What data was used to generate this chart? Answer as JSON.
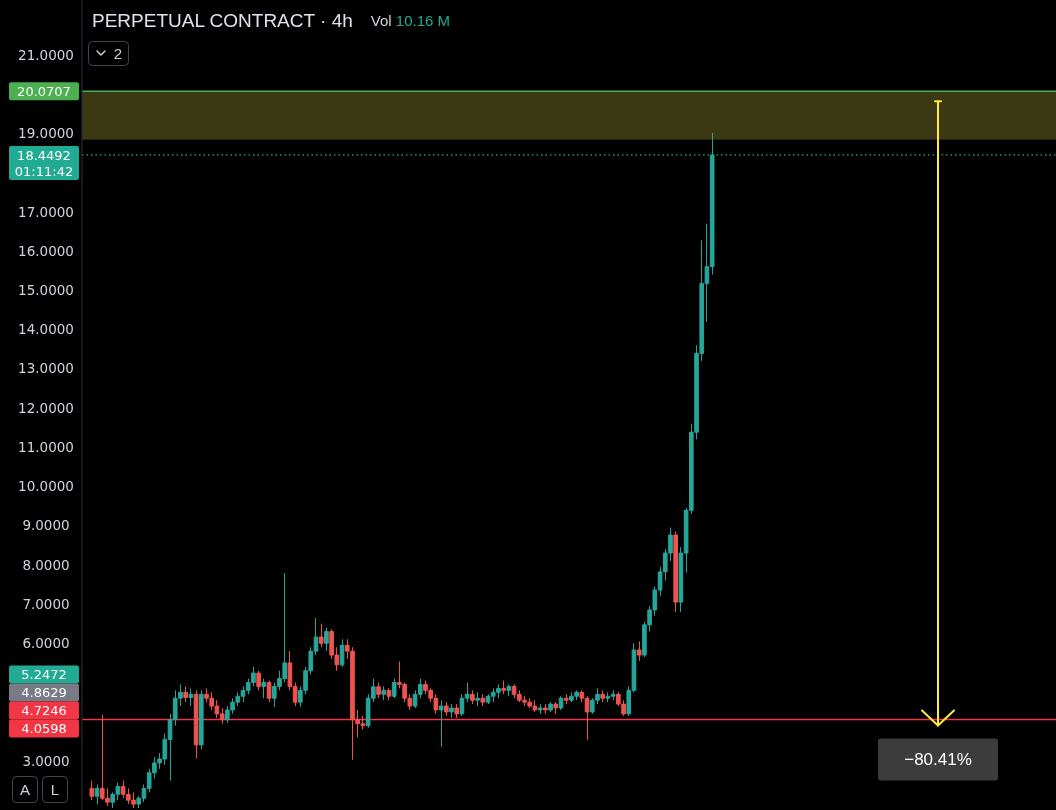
{
  "chart_data": {
    "type": "candlestick",
    "title": "PERPETUAL CONTRACT · 4h",
    "subtitle": "Vol 10.16 M",
    "categories": [
      null,
      null,
      null,
      null,
      null,
      null,
      null,
      null,
      null,
      null,
      null,
      null,
      null,
      null,
      null,
      null,
      null,
      null,
      null,
      null,
      null,
      null,
      null,
      null,
      null,
      null,
      null,
      null,
      null,
      null,
      null,
      null,
      null,
      null,
      null,
      null,
      null,
      null,
      null,
      null,
      null,
      null,
      null,
      null,
      null,
      null,
      null,
      null,
      null,
      null,
      null,
      null,
      null,
      null,
      null,
      null,
      null,
      null,
      null,
      null,
      null,
      null,
      null,
      null,
      null,
      null,
      null,
      null,
      null,
      null,
      null,
      null,
      null,
      null,
      null,
      null,
      null,
      null,
      null,
      null,
      null,
      null,
      null,
      null,
      null,
      null,
      null,
      null,
      null,
      null,
      null,
      null,
      null,
      null,
      null,
      null,
      null,
      null,
      null,
      null,
      null,
      null,
      null,
      null,
      null,
      null,
      null,
      null,
      null,
      null,
      null,
      null,
      null,
      null,
      null,
      null,
      null,
      null,
      null,
      null
    ],
    "ohlc": [
      [
        2.3,
        2.5,
        2.0,
        2.1
      ],
      [
        2.1,
        2.4,
        1.9,
        2.3
      ],
      [
        2.3,
        4.18,
        2.0,
        2.05
      ],
      [
        2.05,
        2.3,
        1.85,
        1.95
      ],
      [
        1.95,
        2.2,
        1.8,
        2.15
      ],
      [
        2.15,
        2.45,
        2.0,
        2.35
      ],
      [
        2.35,
        2.5,
        2.05,
        2.15
      ],
      [
        2.15,
        2.3,
        1.9,
        2.0
      ],
      [
        2.0,
        2.2,
        1.8,
        1.9
      ],
      [
        1.9,
        2.1,
        1.8,
        2.05
      ],
      [
        2.05,
        2.4,
        1.95,
        2.3
      ],
      [
        2.3,
        2.8,
        2.2,
        2.7
      ],
      [
        2.7,
        3.1,
        2.55,
        2.95
      ],
      [
        2.95,
        3.2,
        2.8,
        3.05
      ],
      [
        3.05,
        3.7,
        2.9,
        3.55
      ],
      [
        3.55,
        4.2,
        2.5,
        4.05
      ],
      [
        4.05,
        4.8,
        3.9,
        4.6
      ],
      [
        4.6,
        4.95,
        4.4,
        4.75
      ],
      [
        4.75,
        4.9,
        4.5,
        4.62
      ],
      [
        4.62,
        4.85,
        4.4,
        4.7
      ],
      [
        4.7,
        4.8,
        3.06,
        3.41
      ],
      [
        3.41,
        4.8,
        3.3,
        4.7
      ],
      [
        4.7,
        4.85,
        4.5,
        4.6
      ],
      [
        4.6,
        4.75,
        4.3,
        4.4
      ],
      [
        4.4,
        4.55,
        4.1,
        4.2
      ],
      [
        4.2,
        4.35,
        3.95,
        4.05
      ],
      [
        4.05,
        4.4,
        3.97,
        4.3
      ],
      [
        4.3,
        4.6,
        4.2,
        4.5
      ],
      [
        4.5,
        4.75,
        4.4,
        4.65
      ],
      [
        4.65,
        4.9,
        4.5,
        4.8
      ],
      [
        4.8,
        5.1,
        4.7,
        5.0
      ],
      [
        5.0,
        5.4,
        4.9,
        5.24
      ],
      [
        5.24,
        5.3,
        4.8,
        4.9
      ],
      [
        4.9,
        5.1,
        4.6,
        5.0
      ],
      [
        5.0,
        5.05,
        4.5,
        4.6
      ],
      [
        4.6,
        5.0,
        4.37,
        4.9
      ],
      [
        4.9,
        5.3,
        4.8,
        5.1
      ],
      [
        5.1,
        7.79,
        5.0,
        5.5
      ],
      [
        5.5,
        5.8,
        4.8,
        4.9
      ],
      [
        4.9,
        5.0,
        4.4,
        4.5
      ],
      [
        4.5,
        4.9,
        4.37,
        4.8
      ],
      [
        4.8,
        5.4,
        4.7,
        5.3
      ],
      [
        5.3,
        5.9,
        5.2,
        5.8
      ],
      [
        5.8,
        6.65,
        5.7,
        6.16
      ],
      [
        6.16,
        6.5,
        5.9,
        6.0
      ],
      [
        6.0,
        6.4,
        5.8,
        6.3
      ],
      [
        6.3,
        6.35,
        5.6,
        5.7
      ],
      [
        5.7,
        5.9,
        5.3,
        5.45
      ],
      [
        5.45,
        6.1,
        5.4,
        5.95
      ],
      [
        5.95,
        6.1,
        5.6,
        5.8
      ],
      [
        5.8,
        5.9,
        3.03,
        4.05
      ],
      [
        4.05,
        4.3,
        3.6,
        3.95
      ],
      [
        3.95,
        4.15,
        3.8,
        3.9
      ],
      [
        3.9,
        4.7,
        3.85,
        4.6
      ],
      [
        4.6,
        5.1,
        4.5,
        4.89
      ],
      [
        4.89,
        5.0,
        4.6,
        4.7
      ],
      [
        4.7,
        4.9,
        4.55,
        4.8
      ],
      [
        4.8,
        4.85,
        4.55,
        4.65
      ],
      [
        4.65,
        5.1,
        4.6,
        5.0
      ],
      [
        5.0,
        5.54,
        4.85,
        4.95
      ],
      [
        4.95,
        5.0,
        4.5,
        4.6
      ],
      [
        4.6,
        4.7,
        4.3,
        4.4
      ],
      [
        4.4,
        4.8,
        4.35,
        4.7
      ],
      [
        4.7,
        5.1,
        4.6,
        4.95
      ],
      [
        4.95,
        5.05,
        4.7,
        4.8
      ],
      [
        4.8,
        4.85,
        4.5,
        4.6
      ],
      [
        4.6,
        4.7,
        4.2,
        4.3
      ],
      [
        4.3,
        4.55,
        3.36,
        4.4
      ],
      [
        4.4,
        4.5,
        4.15,
        4.25
      ],
      [
        4.25,
        4.45,
        4.1,
        4.35
      ],
      [
        4.35,
        4.45,
        4.1,
        4.2
      ],
      [
        4.2,
        4.7,
        4.15,
        4.6
      ],
      [
        4.6,
        5.0,
        4.5,
        4.7
      ],
      [
        4.7,
        4.8,
        4.45,
        4.55
      ],
      [
        4.55,
        4.75,
        4.4,
        4.6
      ],
      [
        4.6,
        4.7,
        4.4,
        4.5
      ],
      [
        4.5,
        4.7,
        4.45,
        4.65
      ],
      [
        4.65,
        4.85,
        4.5,
        4.75
      ],
      [
        4.75,
        4.95,
        4.6,
        4.85
      ],
      [
        4.85,
        5.05,
        4.7,
        4.8
      ],
      [
        4.8,
        4.95,
        4.65,
        4.9
      ],
      [
        4.9,
        4.95,
        4.6,
        4.7
      ],
      [
        4.7,
        4.8,
        4.5,
        4.55
      ],
      [
        4.55,
        4.65,
        4.4,
        4.5
      ],
      [
        4.5,
        4.6,
        4.35,
        4.4
      ],
      [
        4.4,
        4.55,
        4.25,
        4.3
      ],
      [
        4.3,
        4.45,
        4.2,
        4.35
      ],
      [
        4.35,
        4.45,
        4.2,
        4.3
      ],
      [
        4.3,
        4.5,
        4.25,
        4.45
      ],
      [
        4.45,
        4.5,
        4.2,
        4.35
      ],
      [
        4.35,
        4.65,
        4.3,
        4.6
      ],
      [
        4.6,
        4.7,
        4.45,
        4.55
      ],
      [
        4.55,
        4.75,
        4.5,
        4.65
      ],
      [
        4.65,
        4.8,
        4.55,
        4.75
      ],
      [
        4.75,
        4.8,
        4.5,
        4.6
      ],
      [
        4.6,
        4.65,
        3.54,
        4.25
      ],
      [
        4.25,
        4.6,
        4.2,
        4.55
      ],
      [
        4.55,
        4.85,
        4.45,
        4.7
      ],
      [
        4.7,
        4.8,
        4.5,
        4.6
      ],
      [
        4.6,
        4.75,
        4.5,
        4.65
      ],
      [
        4.65,
        4.8,
        4.55,
        4.7
      ],
      [
        4.7,
        4.75,
        4.4,
        4.45
      ],
      [
        4.45,
        4.55,
        4.15,
        4.2
      ],
      [
        4.2,
        4.9,
        4.15,
        4.8
      ],
      [
        4.8,
        6.0,
        4.75,
        5.83
      ],
      [
        5.83,
        6.05,
        5.55,
        5.7
      ],
      [
        5.7,
        6.55,
        5.65,
        6.47
      ],
      [
        6.47,
        6.95,
        6.3,
        6.85
      ],
      [
        6.85,
        7.45,
        6.7,
        7.36
      ],
      [
        7.36,
        7.95,
        7.2,
        7.82
      ],
      [
        7.82,
        8.4,
        7.6,
        8.3
      ],
      [
        8.3,
        8.95,
        8.1,
        8.76
      ],
      [
        8.76,
        8.85,
        6.8,
        7.05
      ],
      [
        7.05,
        8.45,
        6.8,
        8.3
      ],
      [
        8.3,
        9.45,
        7.8,
        9.39
      ],
      [
        9.39,
        11.6,
        9.3,
        11.38
      ],
      [
        11.38,
        13.6,
        11.2,
        13.39
      ],
      [
        13.39,
        16.27,
        13.2,
        15.17
      ],
      [
        15.17,
        16.7,
        14.2,
        15.6
      ],
      [
        15.6,
        19.01,
        15.4,
        18.4492
      ]
    ],
    "ylim": [
      1.75,
      22.4
    ],
    "yticks": [
      {
        "value": 3,
        "label": "3.0000"
      },
      {
        "value": 6,
        "label": "6.0000"
      },
      {
        "value": 7,
        "label": "7.0000"
      },
      {
        "value": 8,
        "label": "8.0000"
      },
      {
        "value": 9,
        "label": "9.0000"
      },
      {
        "value": 10,
        "label": "10.0000"
      },
      {
        "value": 11,
        "label": "11.0000"
      },
      {
        "value": 12,
        "label": "12.0000"
      },
      {
        "value": 13,
        "label": "13.0000"
      },
      {
        "value": 14,
        "label": "14.0000"
      },
      {
        "value": 15,
        "label": "15.0000"
      },
      {
        "value": 16,
        "label": "16.0000"
      },
      {
        "value": 17,
        "label": "17.0000"
      },
      {
        "value": 19,
        "label": "19.0000"
      },
      {
        "value": 21,
        "label": "21.0000"
      }
    ],
    "tick_labels": "y",
    "ref_lines": [
      {
        "axis": "y",
        "value": 20.0707,
        "label": "20.0707",
        "color": "#4caf50"
      },
      {
        "axis": "y",
        "value": 18.4492,
        "label": "18.4492",
        "color": "#22ab94",
        "line_style": "dotted"
      },
      {
        "axis": "y",
        "value": 4.0598,
        "label": "4.0598",
        "color": "#f23645"
      }
    ],
    "bands": [
      {
        "axis": "y",
        "from": 18.84,
        "to": 20.0707,
        "color": "#3b3814"
      }
    ],
    "annotations": [
      "01:11:42",
      "5.2472",
      "4.8629",
      "4.7246",
      "−80.41%",
      "2",
      "A",
      "L"
    ]
  }
}
